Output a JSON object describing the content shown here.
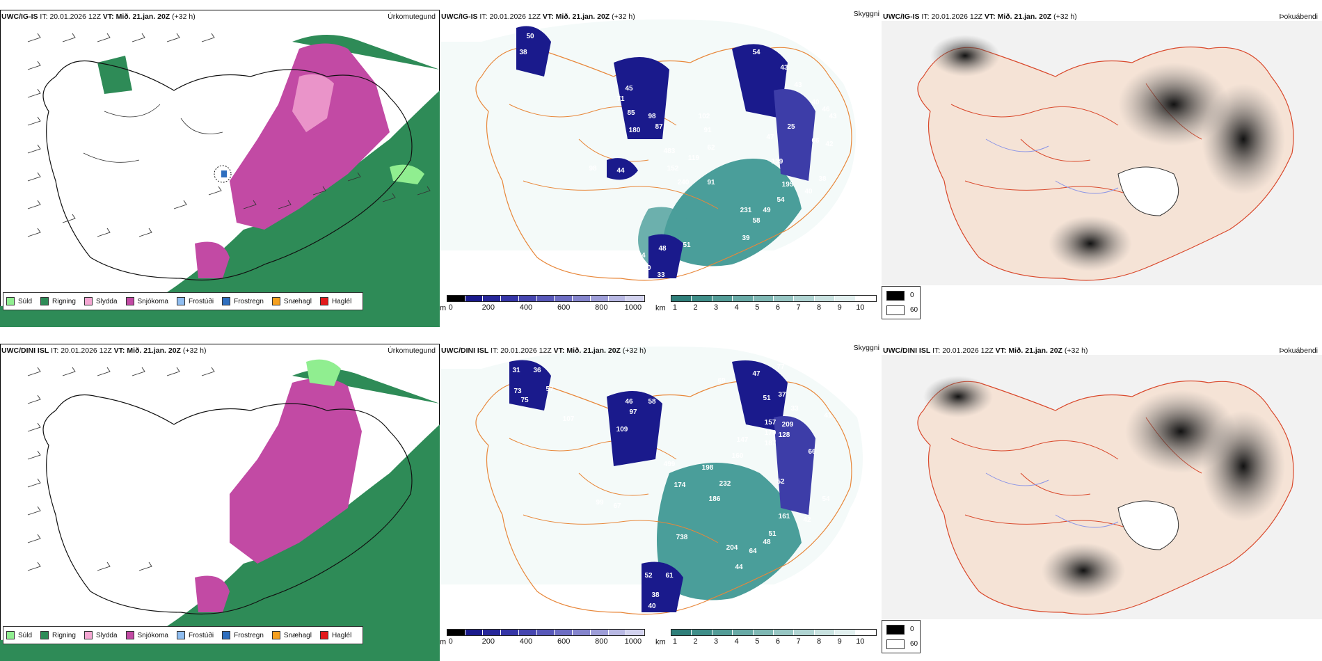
{
  "colors": {
    "precip_green": "#2e8b57",
    "precip_lightgreen": "#90ee90",
    "precip_pink": "#f4a6d2",
    "precip_magenta": "#c24aa4",
    "precip_lightblue": "#8fbdf0",
    "precip_blue": "#2f6fbf",
    "precip_orange": "#f5a020",
    "precip_red": "#e31a1c",
    "road_orange": "#e8873a",
    "teal": "#4a9e9a",
    "navy": "#1a1a8c"
  },
  "top": {
    "precip": {
      "model": "UWC/IG-IS",
      "it_label": "IT:",
      "it_value": "20.01.2026 12Z",
      "vt_label": "VT:",
      "vt_value": "Mið. 21.jan. 20Z",
      "lead": "(+32 h)",
      "product": "Úrkomutegund"
    },
    "visibility": {
      "model": "UWC/IG-IS",
      "it_label": "IT:",
      "it_value": "20.01.2026 12Z",
      "vt_label": "VT:",
      "vt_value": "Mið. 21.jan. 20Z",
      "lead": "(+32 h)",
      "product": "Skyggni",
      "values": [
        "50",
        "38",
        "54",
        "43",
        "43",
        "40",
        "46",
        "43",
        "45",
        "71",
        "85",
        "98",
        "87",
        "180",
        "102",
        "91",
        "47",
        "25",
        "66",
        "42",
        "483",
        "62",
        "119",
        "139",
        "152",
        "240",
        "91",
        "44",
        "98",
        "195",
        "40",
        "38",
        "54",
        "49",
        "231",
        "58",
        "39",
        "48",
        "51",
        "64",
        "33",
        "40"
      ]
    },
    "fog": {
      "model": "UWC/IG-IS",
      "it_label": "IT:",
      "it_value": "20.01.2026 12Z",
      "vt_label": "VT:",
      "vt_value": "Mið. 21.jan. 20Z",
      "lead": "(+32 h)",
      "product": "Þokuábendi"
    }
  },
  "bottom": {
    "precip": {
      "model": "UWC/DINI ISL",
      "it_label": "IT:",
      "it_value": "20.01.2026 12Z",
      "vt_label": "VT:",
      "vt_value": "Mið. 21.jan. 20Z",
      "lead": "(+32 h)",
      "product": "Úrkomutegund"
    },
    "visibility": {
      "model": "UWC/DINI ISL",
      "it_label": "IT:",
      "it_value": "20.01.2026 12Z",
      "vt_label": "VT:",
      "vt_value": "Mið. 21.jan. 20Z",
      "lead": "(+32 h)",
      "product": "Skyggni",
      "values": [
        "49",
        "31",
        "36",
        "73",
        "57",
        "75",
        "107",
        "97",
        "46",
        "109",
        "58",
        "69",
        "47",
        "77",
        "51",
        "37",
        "33",
        "41",
        "157",
        "209",
        "179",
        "128",
        "187",
        "66",
        "499",
        "174",
        "147",
        "160",
        "198",
        "232",
        "52",
        "186",
        "54",
        "99",
        "67",
        "161",
        "42",
        "738",
        "204",
        "64",
        "48",
        "51",
        "44",
        "52",
        "61",
        "57",
        "38",
        "40"
      ]
    },
    "fog": {
      "model": "UWC/DINI ISL",
      "it_label": "IT:",
      "it_value": "20.01.2026 12Z",
      "vt_label": "VT:",
      "vt_value": "Mið. 21.jan. 20Z",
      "lead": "(+32 h)",
      "product": "Þokuábendi"
    }
  },
  "precip_legend": [
    "Súld",
    "Rigning",
    "Slydda",
    "Snjókoma",
    "Frostúði",
    "Frostregn",
    "Snæhagl",
    "Haglél"
  ],
  "vis_colorbar": {
    "m_unit": "m",
    "m_ticks": [
      "0",
      "200",
      "400",
      "600",
      "800",
      "1000"
    ],
    "km_unit": "km",
    "km_ticks": [
      "1",
      "2",
      "3",
      "4",
      "5",
      "6",
      "7",
      "8",
      "9",
      "10"
    ]
  },
  "fog_legend": {
    "dark": "0",
    "light": "60"
  }
}
